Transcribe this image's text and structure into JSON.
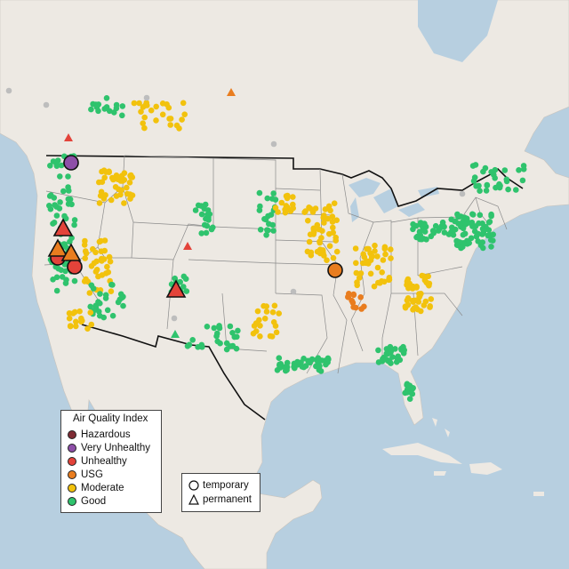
{
  "legend": {
    "title": "Air Quality Index",
    "categories": [
      {
        "label": "Hazardous",
        "color": "#7e2b34"
      },
      {
        "label": "Very Unhealthy",
        "color": "#8e4fa8"
      },
      {
        "label": "Unhealthy",
        "color": "#e3433a"
      },
      {
        "label": "USG",
        "color": "#e97d1f"
      },
      {
        "label": "Moderate",
        "color": "#f2c20d"
      },
      {
        "label": "Good",
        "color": "#2fc36d"
      }
    ],
    "monitor_types": [
      {
        "label": "temporary",
        "icon": "circle-icon"
      },
      {
        "label": "permanent",
        "icon": "triangle-icon"
      }
    ]
  },
  "colors": {
    "ocean": "#b7cfe0",
    "land": "#ede9e3",
    "state_border": "#8a8a8a",
    "country_border": "#111111",
    "no_data": "#bdbdbd"
  }
}
